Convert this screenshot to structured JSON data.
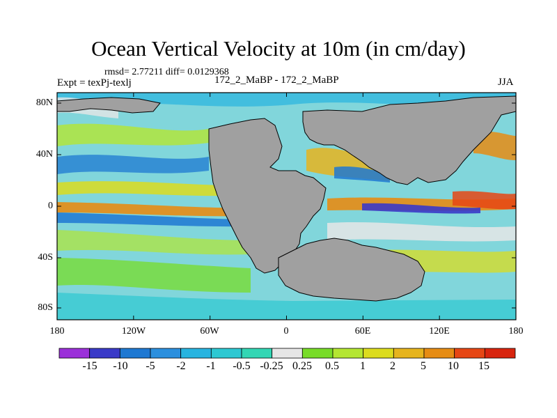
{
  "title": "Ocean Vertical Velocity at 10m (in cm/day)",
  "stats_line": "rmsd= 2.77211 diff= 0.0129368",
  "experiment_label": "Expt = texPj-texlj",
  "comparison_label": "172_2_MaBP - 172_2_MaBP",
  "season_label": "JJA",
  "lat_labels": [
    "80N",
    "40N",
    "0",
    "40S",
    "80S"
  ],
  "lon_labels": [
    "180",
    "120W",
    "60W",
    "0",
    "60E",
    "120E",
    "180"
  ],
  "colorbar": {
    "labels": [
      "-15",
      "-10",
      "-5",
      "-2",
      "-1",
      "-0.5",
      "-0.25",
      "0.25",
      "0.5",
      "1",
      "2",
      "5",
      "10",
      "15"
    ],
    "colors": [
      "#9b30d9",
      "#3a3ac8",
      "#1e78d2",
      "#2b8fde",
      "#28b4e0",
      "#2dc8d2",
      "#33d6b4",
      "#e6e6e6",
      "#78dc28",
      "#b4e632",
      "#dcdc1e",
      "#e6b41e",
      "#e68c14",
      "#e64614",
      "#d8240e"
    ]
  },
  "land_color": "#a0a0a0",
  "map_legend_note": ""
}
